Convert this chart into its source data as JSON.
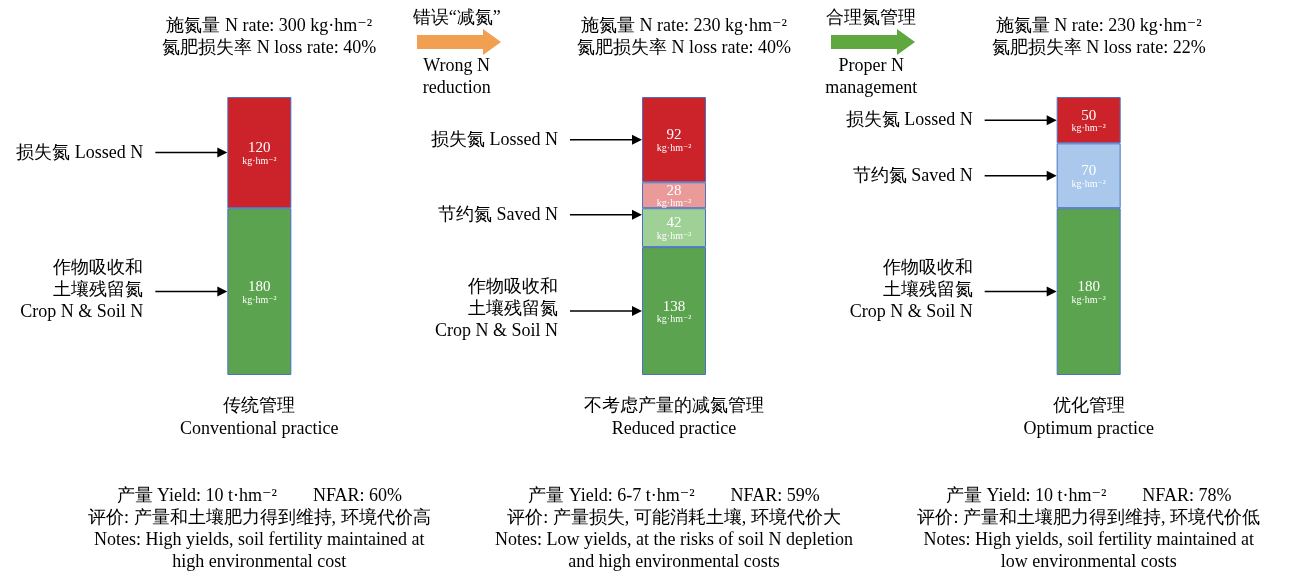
{
  "chart_data": {
    "type": "bar",
    "stacked": true,
    "tick_labels": "x",
    "categories": [
      "传统管理\nConventional practice",
      "不考虑产量的减氮管理\nReduced practice",
      "优化管理\nOptimum practice"
    ],
    "ylim": [
      0,
      300
    ],
    "series": [
      {
        "color": "#5ba34f",
        "values": [
          180,
          138,
          180
        ],
        "value_labels": [
          "180\nkg·hm⁻²",
          "138\nkg·hm⁻²",
          "180\nkg·hm⁻²"
        ]
      },
      {
        "color": "#9fd196",
        "values": [
          null,
          42,
          null
        ],
        "value_labels": [
          null,
          "42\nkg·hm⁻²",
          null
        ]
      },
      {
        "color": "#eb9a9a",
        "values": [
          null,
          28,
          null
        ],
        "value_labels": [
          null,
          "28\nkg·hm⁻²",
          null
        ]
      },
      {
        "color": "#a9c8ec",
        "values": [
          null,
          null,
          70
        ],
        "value_labels": [
          null,
          null,
          "70\nkg·hm⁻²"
        ]
      },
      {
        "color": "#cc2229",
        "values": [
          120,
          92,
          50
        ],
        "value_labels": [
          "120\nkg·hm⁻²",
          "92\nkg·hm⁻²",
          "50\nkg·hm⁻²"
        ]
      }
    ],
    "annotations": [
      "施氮量 N rate: 300 kg·hm⁻²\n氮肥损失率 N loss rate: 40%",
      "施氮量 N rate: 230 kg·hm⁻²\n氮肥损失率 N loss rate: 40%",
      "施氮量 N rate: 230 kg·hm⁻²\n氮肥损失率 N loss rate: 22%",
      "错误“减氮”\nWrong N\nreduction",
      "合理氮管理\nProper N\nmanagement",
      "产量 Yield: 10 t·hm⁻²        NFAR: 60%\n评价: 产量和土壤肥力得到维持, 环境代价高\nNotes: High yields, soil fertility maintained at\nhigh environmental cost",
      "产量 Yield: 6-7 t·hm⁻²        NFAR: 59%\n评价: 产量损失, 可能消耗土壤, 环境代价大\nNotes: Low yields, at the risks of soil N depletion\nand high environmental costs",
      "产量 Yield: 10 t·hm⁻²        NFAR: 78%\n评价: 产量和土壤肥力得到维持, 环境代价低\nNotes: High yields, soil fertility maintained at\nlow environmental costs",
      "损失氮 Lossed N",
      "作物吸收和土壤残留氮\nCrop N & Soil N",
      "损失氮 Lossed N",
      "节约氮 Saved N",
      "作物吸收和土壤残留氮\nCrop N & Soil N",
      "损失氮 Lossed N",
      "节约氮 Saved N",
      "作物吸收和土壤残留氮\nCrop N & Soil N"
    ]
  }
}
